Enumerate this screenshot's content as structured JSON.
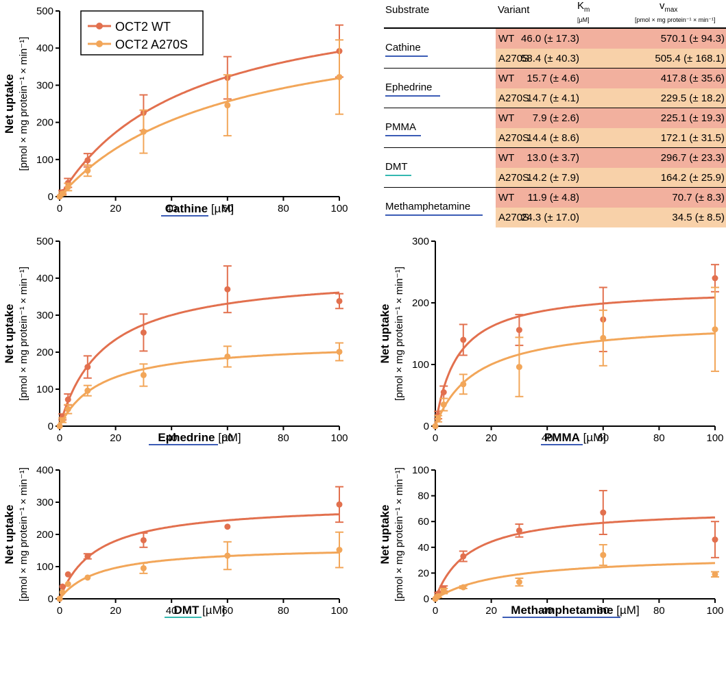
{
  "colors": {
    "wt": "#E2704E",
    "mutant": "#F2A659",
    "wt_row": "#F2B09E",
    "mutant_row": "#F8D1A9",
    "underline_blue": "#3A5BB5",
    "underline_teal": "#34B8B0"
  },
  "legend": {
    "wt": "OCT2 WT",
    "mutant": "OCT2 A270S"
  },
  "table": {
    "headers": {
      "substrate": "Substrate",
      "variant": "Variant",
      "km": "K",
      "km_sub": "m",
      "km_unit": "[µM]",
      "vmax": "v",
      "vmax_sub": "max",
      "vmax_unit": "[pmol × mg protein⁻¹ × min⁻¹]"
    },
    "rows": [
      {
        "substrate": "Cathine",
        "underline": "blue",
        "wt": {
          "variant": "WT",
          "km": "46.0 (± 17.3)",
          "vmax": "570.1 (± 94.3)"
        },
        "mutant": {
          "variant": "A270S",
          "km": "58.4 (± 40.3)",
          "vmax": "505.4 (± 168.1)"
        }
      },
      {
        "substrate": "Ephedrine",
        "underline": "blue",
        "wt": {
          "variant": "WT",
          "km": "15.7 (± 4.6)",
          "vmax": "417.8 (± 35.6)"
        },
        "mutant": {
          "variant": "A270S",
          "km": "14.7 (± 4.1)",
          "vmax": "229.5 (± 18.2)"
        }
      },
      {
        "substrate": "PMMA",
        "underline": "blue",
        "wt": {
          "variant": "WT",
          "km": "7.9 (± 2.6)",
          "vmax": "225.1 (± 19.3)"
        },
        "mutant": {
          "variant": "A270S",
          "km": "14.4 (± 8.6)",
          "vmax": "172.1 (± 31.5)"
        }
      },
      {
        "substrate": "DMT",
        "underline": "teal",
        "wt": {
          "variant": "WT",
          "km": "13.0 (± 3.7)",
          "vmax": "296.7 (± 23.3)"
        },
        "mutant": {
          "variant": "A270S",
          "km": "14.2 (± 7.9)",
          "vmax": "164.2 (± 25.9)"
        }
      },
      {
        "substrate": "Methamphetamine",
        "underline": "blue",
        "wt": {
          "variant": "WT",
          "km": "11.9 (± 4.8)",
          "vmax": "70.7 (± 8.3)"
        },
        "mutant": {
          "variant": "A270S",
          "km": "24.3 (± 17.0)",
          "vmax": "34.5 (± 8.5)"
        }
      }
    ]
  },
  "chart_data": [
    {
      "type": "scatter",
      "id": "cathine",
      "substrate": "Cathine",
      "xunit": "[µM]",
      "ylabel_line1": "Net uptake",
      "ylabel_line2": "[pmol × mg protein⁻¹ × min⁻¹]",
      "xlim": [
        0,
        100
      ],
      "ylim": [
        0,
        500
      ],
      "xticks": [
        0,
        20,
        40,
        60,
        80,
        100
      ],
      "yticks": [
        0,
        100,
        200,
        300,
        400,
        500
      ],
      "series": [
        {
          "name": "OCT2 WT",
          "color": "#E2704E",
          "fit": {
            "vmax": 570.1,
            "km": 46.0
          },
          "points": [
            {
              "x": 0,
              "y": 0,
              "err": 0
            },
            {
              "x": 1,
              "y": 12,
              "err": 5
            },
            {
              "x": 3,
              "y": 37,
              "err": 12
            },
            {
              "x": 10,
              "y": 98,
              "err": 18
            },
            {
              "x": 30,
              "y": 226,
              "err": 48
            },
            {
              "x": 60,
              "y": 320,
              "err": 57
            },
            {
              "x": 100,
              "y": 392,
              "err": 70
            }
          ]
        },
        {
          "name": "OCT2 A270S",
          "color": "#F2A659",
          "fit": {
            "vmax": 505.4,
            "km": 58.4
          },
          "points": [
            {
              "x": 0,
              "y": 0,
              "err": 0
            },
            {
              "x": 1,
              "y": 8,
              "err": 4
            },
            {
              "x": 3,
              "y": 26,
              "err": 10
            },
            {
              "x": 10,
              "y": 70,
              "err": 15
            },
            {
              "x": 30,
              "y": 175,
              "err": 58
            },
            {
              "x": 60,
              "y": 246,
              "err": 82
            },
            {
              "x": 100,
              "y": 322,
              "err": 100
            }
          ]
        }
      ]
    },
    {
      "type": "scatter",
      "id": "ephedrine",
      "substrate": "Ephedrine",
      "xunit": "[µM]",
      "ylabel_line1": "Net uptake",
      "ylabel_line2": "[pmol × mg protein⁻¹ × min⁻¹]",
      "xlim": [
        0,
        100
      ],
      "ylim": [
        0,
        500
      ],
      "xticks": [
        0,
        20,
        40,
        60,
        80,
        100
      ],
      "yticks": [
        0,
        100,
        200,
        300,
        400,
        500
      ],
      "series": [
        {
          "name": "OCT2 WT",
          "color": "#E2704E",
          "fit": {
            "vmax": 417.8,
            "km": 15.7
          },
          "points": [
            {
              "x": 0,
              "y": 0,
              "err": 0
            },
            {
              "x": 1,
              "y": 25,
              "err": 8
            },
            {
              "x": 3,
              "y": 72,
              "err": 15
            },
            {
              "x": 10,
              "y": 160,
              "err": 30
            },
            {
              "x": 30,
              "y": 253,
              "err": 50
            },
            {
              "x": 60,
              "y": 370,
              "err": 63
            },
            {
              "x": 100,
              "y": 338,
              "err": 20
            }
          ]
        },
        {
          "name": "OCT2 A270S",
          "color": "#F2A659",
          "fit": {
            "vmax": 229.5,
            "km": 14.7
          },
          "points": [
            {
              "x": 0,
              "y": 0,
              "err": 0
            },
            {
              "x": 1,
              "y": 16,
              "err": 6
            },
            {
              "x": 3,
              "y": 46,
              "err": 12
            },
            {
              "x": 10,
              "y": 96,
              "err": 14
            },
            {
              "x": 30,
              "y": 138,
              "err": 30
            },
            {
              "x": 60,
              "y": 188,
              "err": 28
            },
            {
              "x": 100,
              "y": 201,
              "err": 24
            }
          ]
        }
      ]
    },
    {
      "type": "scatter",
      "id": "pmma",
      "substrate": "PMMA",
      "xunit": "[µM]",
      "ylabel_line1": "Net uptake",
      "ylabel_line2": "[pmol × mg protein⁻¹ × min⁻¹]",
      "xlim": [
        0,
        100
      ],
      "ylim": [
        0,
        300
      ],
      "xticks": [
        0,
        20,
        40,
        60,
        80,
        100
      ],
      "yticks": [
        0,
        100,
        200,
        300
      ],
      "series": [
        {
          "name": "OCT2 WT",
          "color": "#E2704E",
          "fit": {
            "vmax": 225.1,
            "km": 7.9
          },
          "points": [
            {
              "x": 0,
              "y": 0,
              "err": 0
            },
            {
              "x": 1,
              "y": 18,
              "err": 6
            },
            {
              "x": 3,
              "y": 55,
              "err": 10
            },
            {
              "x": 10,
              "y": 140,
              "err": 25
            },
            {
              "x": 30,
              "y": 156,
              "err": 25
            },
            {
              "x": 60,
              "y": 173,
              "err": 52
            },
            {
              "x": 100,
              "y": 240,
              "err": 22
            }
          ]
        },
        {
          "name": "OCT2 A270S",
          "color": "#F2A659",
          "fit": {
            "vmax": 172.1,
            "km": 14.4
          },
          "points": [
            {
              "x": 0,
              "y": 0,
              "err": 0
            },
            {
              "x": 1,
              "y": 12,
              "err": 5
            },
            {
              "x": 3,
              "y": 35,
              "err": 10
            },
            {
              "x": 10,
              "y": 68,
              "err": 16
            },
            {
              "x": 30,
              "y": 96,
              "err": 48
            },
            {
              "x": 60,
              "y": 143,
              "err": 45
            },
            {
              "x": 100,
              "y": 157,
              "err": 68
            }
          ]
        }
      ]
    },
    {
      "type": "scatter",
      "id": "dmt",
      "substrate": "DMT",
      "xunit": "[µM]",
      "ylabel_line1": "Net uptake",
      "ylabel_line2": "[pmol × mg protein⁻¹ × min⁻¹]",
      "xlim": [
        0,
        100
      ],
      "ylim": [
        0,
        400
      ],
      "xticks": [
        0,
        20,
        40,
        60,
        80,
        100
      ],
      "yticks": [
        0,
        100,
        200,
        300,
        400
      ],
      "series": [
        {
          "name": "OCT2 WT",
          "color": "#E2704E",
          "fit": {
            "vmax": 296.7,
            "km": 13.0
          },
          "points": [
            {
              "x": 0,
              "y": 0,
              "err": 0
            },
            {
              "x": 1,
              "y": 38,
              "err": 0
            },
            {
              "x": 3,
              "y": 76,
              "err": 0
            },
            {
              "x": 10,
              "y": 132,
              "err": 8
            },
            {
              "x": 30,
              "y": 182,
              "err": 22
            },
            {
              "x": 60,
              "y": 224,
              "err": 0
            },
            {
              "x": 100,
              "y": 293,
              "err": 55
            }
          ]
        },
        {
          "name": "OCT2 A270S",
          "color": "#F2A659",
          "fit": {
            "vmax": 164.2,
            "km": 14.2
          },
          "points": [
            {
              "x": 0,
              "y": 0,
              "err": 0
            },
            {
              "x": 1,
              "y": 20,
              "err": 0
            },
            {
              "x": 3,
              "y": 46,
              "err": 0
            },
            {
              "x": 10,
              "y": 66,
              "err": 0
            },
            {
              "x": 30,
              "y": 95,
              "err": 16
            },
            {
              "x": 60,
              "y": 134,
              "err": 43
            },
            {
              "x": 100,
              "y": 152,
              "err": 55
            }
          ]
        }
      ]
    },
    {
      "type": "scatter",
      "id": "methamphetamine",
      "substrate": "Methamphetamine",
      "xunit": "[µM]",
      "ylabel_line1": "Net uptake",
      "ylabel_line2": "[pmol × mg protein⁻¹ × min⁻¹]",
      "xlim": [
        0,
        100
      ],
      "ylim": [
        0,
        100
      ],
      "xticks": [
        0,
        20,
        40,
        60,
        80,
        100
      ],
      "yticks": [
        0,
        20,
        40,
        60,
        80,
        100
      ],
      "series": [
        {
          "name": "OCT2 WT",
          "color": "#E2704E",
          "fit": {
            "vmax": 70.7,
            "km": 11.9
          },
          "points": [
            {
              "x": 0,
              "y": 0,
              "err": 0
            },
            {
              "x": 1,
              "y": 4,
              "err": 1
            },
            {
              "x": 3,
              "y": 8,
              "err": 2
            },
            {
              "x": 10,
              "y": 33,
              "err": 4
            },
            {
              "x": 30,
              "y": 53,
              "err": 5
            },
            {
              "x": 60,
              "y": 67,
              "err": 17
            },
            {
              "x": 100,
              "y": 46,
              "err": 14
            }
          ]
        },
        {
          "name": "OCT2 A270S",
          "color": "#F2A659",
          "fit": {
            "vmax": 34.5,
            "km": 24.3
          },
          "points": [
            {
              "x": 0,
              "y": 0,
              "err": 0
            },
            {
              "x": 1,
              "y": 2,
              "err": 1
            },
            {
              "x": 3,
              "y": 6,
              "err": 2
            },
            {
              "x": 10,
              "y": 9,
              "err": 1
            },
            {
              "x": 30,
              "y": 13,
              "err": 3
            },
            {
              "x": 60,
              "y": 34,
              "err": 8
            },
            {
              "x": 100,
              "y": 19,
              "err": 2
            }
          ]
        }
      ]
    }
  ]
}
